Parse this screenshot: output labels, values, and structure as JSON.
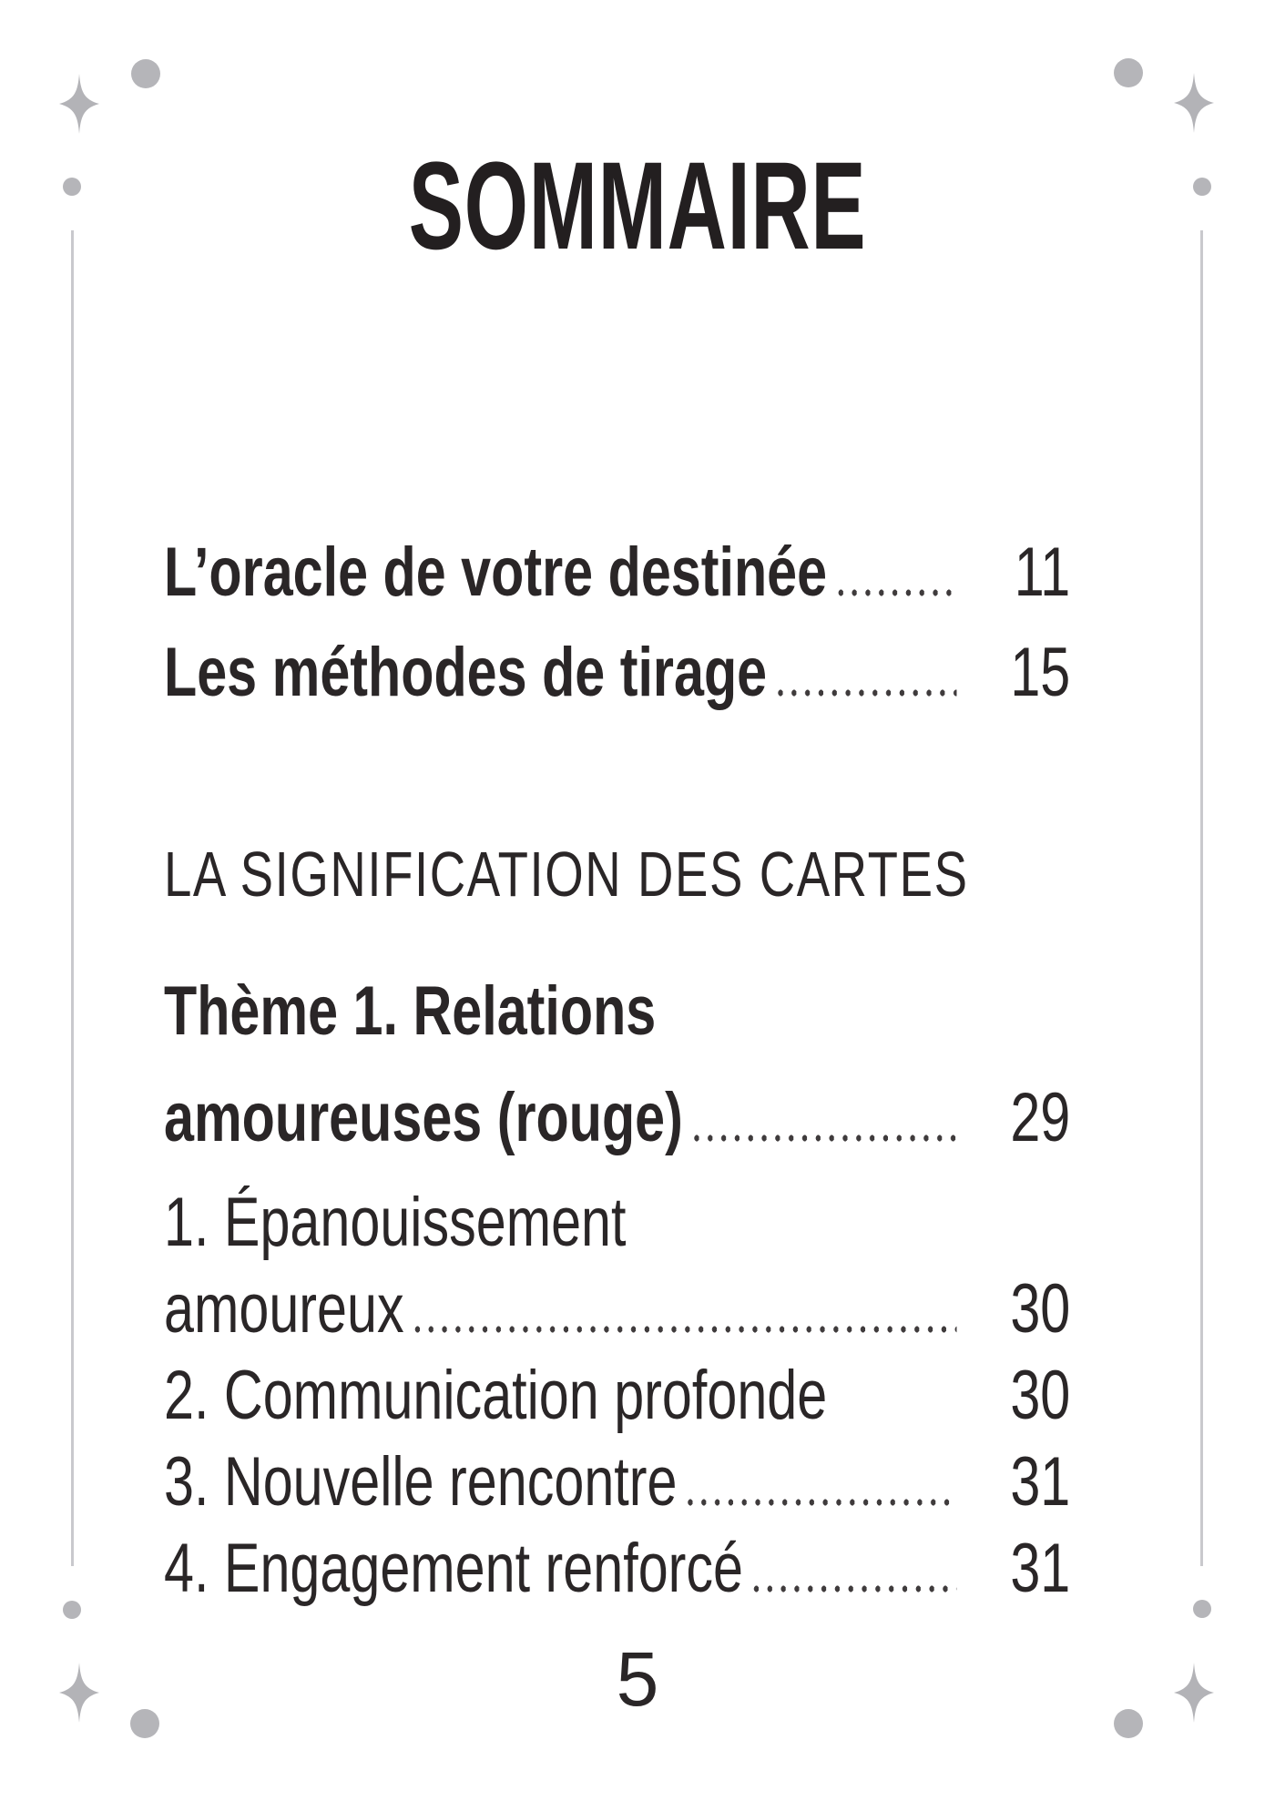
{
  "page": {
    "title": "SOMMAIRE",
    "page_number": "5"
  },
  "toc": {
    "entries": [
      {
        "label": "L’oracle de votre destinée",
        "page": "11",
        "style": "chapter",
        "leader": true
      },
      {
        "label": "Les méthodes de tirage",
        "page": "15",
        "style": "chapter",
        "leader": true
      },
      {
        "label": "LA SIGNIFICATION DES CARTES",
        "page": "",
        "style": "section",
        "leader": false
      },
      {
        "label": "Thème 1. Relations",
        "page": "",
        "style": "chapter",
        "leader": false
      },
      {
        "label": "amoureuses (rouge)",
        "page": "29",
        "style": "chapter",
        "leader": true
      },
      {
        "label": "1. Épanouissement",
        "page": "",
        "style": "item",
        "leader": false
      },
      {
        "label": "amoureux",
        "page": "30",
        "style": "item",
        "leader": true
      },
      {
        "label": "2. Communication profonde",
        "page": "30",
        "style": "item",
        "leader": false
      },
      {
        "label": "3. Nouvelle rencontre",
        "page": "31",
        "style": "item",
        "leader": true
      },
      {
        "label": "4. Engagement renforcé",
        "page": "31",
        "style": "item",
        "leader": true
      }
    ]
  },
  "icons": {
    "sparkle": "four-point-star",
    "dot": "circle",
    "dot_leader": "dotted-line"
  },
  "colors": {
    "text": "#2a2627",
    "decoration": "#b5b5b9",
    "border_line": "#c9c9cd"
  }
}
